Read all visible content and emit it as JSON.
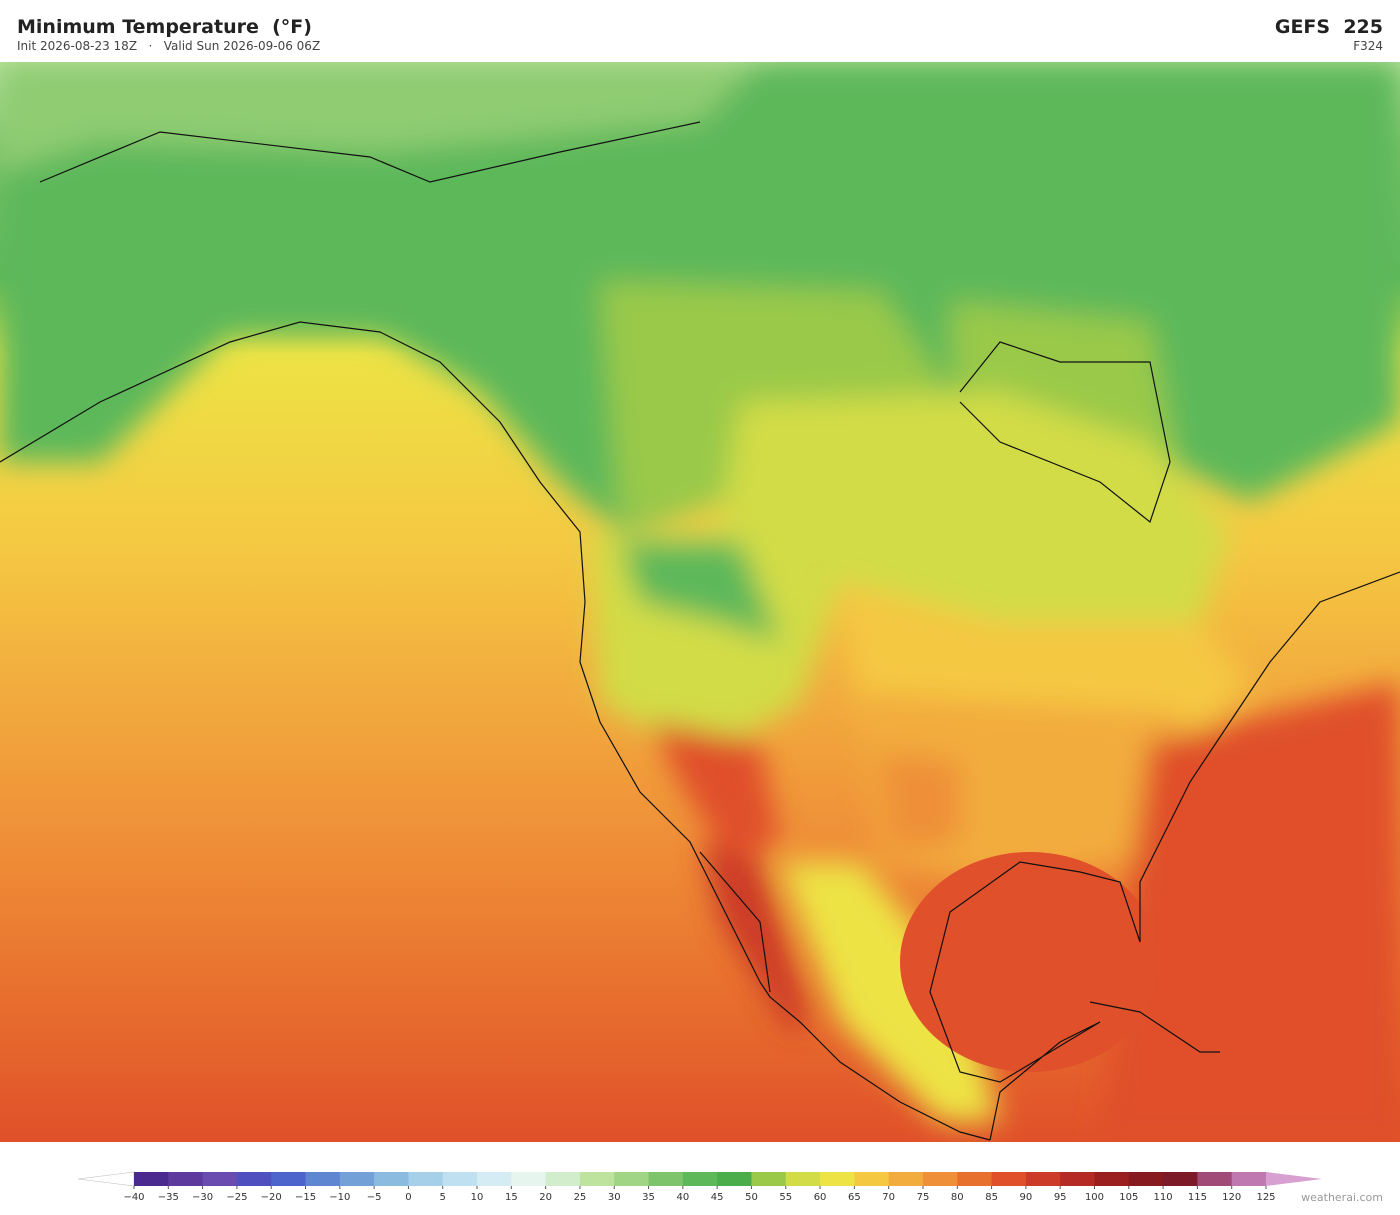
{
  "header": {
    "title": "Minimum Temperature  (°F)",
    "subtitle": "Init 2026-08-23 18Z   ·   Valid Sun 2026-09-06 06Z",
    "model": "GEFS  225",
    "forecast_hour": "F324"
  },
  "colorbar": {
    "ticks": [
      {
        "value": -40,
        "label": "−40"
      },
      {
        "value": -35,
        "label": "−35"
      },
      {
        "value": -30,
        "label": "−30"
      },
      {
        "value": -25,
        "label": "−25"
      },
      {
        "value": -20,
        "label": "−20"
      },
      {
        "value": -15,
        "label": "−15"
      },
      {
        "value": -10,
        "label": "−10"
      },
      {
        "value": -5,
        "label": "−5"
      },
      0,
      5,
      10,
      15,
      20,
      25,
      30,
      35,
      40,
      45,
      50,
      55,
      60,
      65,
      70,
      75,
      80,
      85,
      90,
      95,
      100,
      105,
      110,
      115,
      120,
      125
    ],
    "colors": [
      "#4a2a8f",
      "#5d3a9e",
      "#6a4cb0",
      "#4f4fc0",
      "#4d64cc",
      "#5f86d0",
      "#74a0d8",
      "#8cbbe0",
      "#a6d0ea",
      "#bfe0f0",
      "#d6ecf4",
      "#e6f5ee",
      "#d2edcc",
      "#bde39f",
      "#9fd585",
      "#7ec46a",
      "#5db85a",
      "#4aad4a",
      "#9ac94a",
      "#d2dc46",
      "#ede345",
      "#f5c842",
      "#f2ac3e",
      "#ef8f38",
      "#e8702e",
      "#e0502a",
      "#cc3a28",
      "#b52a24",
      "#9c1f20",
      "#861a1e",
      "#7c1a28",
      "#a04a78",
      "#c078b0"
    ],
    "under_color": "#ffffff",
    "over_color": "#d8a0d0"
  },
  "watermark": "weatherai.com"
}
